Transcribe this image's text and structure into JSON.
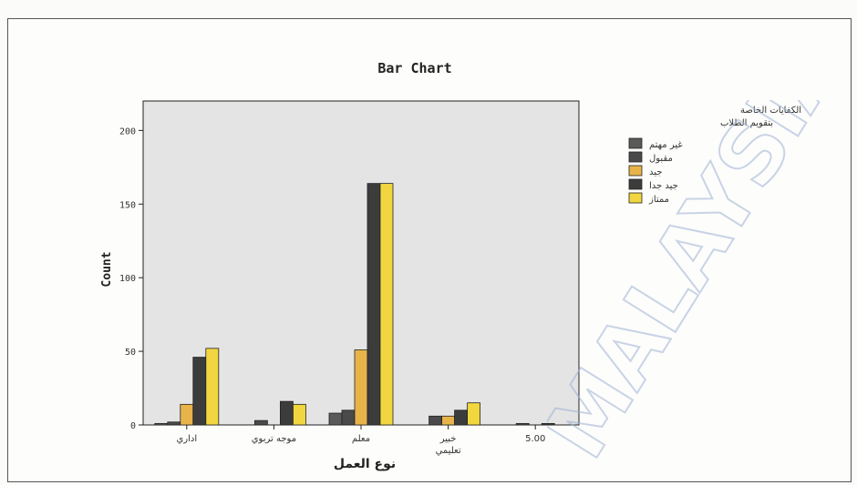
{
  "chart_data": {
    "type": "bar",
    "title": "Bar Chart",
    "ylabel": "Count",
    "xlabel": "نوع العمل",
    "ylim": [
      0,
      220
    ],
    "yticks": [
      0,
      50,
      100,
      150,
      200
    ],
    "categories": [
      "اداري",
      "موجه تربوي",
      "معلم",
      "خبير تعليمي",
      "5.00"
    ],
    "legend_title": [
      "الكفايات الخاصة",
      "بتقويم الطلاب"
    ],
    "legend_position": "right",
    "series": [
      {
        "name": "غير مهتم",
        "color": "#5a5a5a",
        "values": [
          1,
          0,
          8,
          0,
          0
        ]
      },
      {
        "name": "مقبول",
        "color": "#4a4a4a",
        "values": [
          2,
          3,
          10,
          6,
          1
        ]
      },
      {
        "name": "جيد",
        "color": "#e8b44a",
        "values": [
          14,
          0,
          51,
          6,
          0
        ]
      },
      {
        "name": "جيد جدا",
        "color": "#3c3c3c",
        "values": [
          46,
          16,
          164,
          10,
          1
        ]
      },
      {
        "name": "ممتاز",
        "color": "#f2d640",
        "values": [
          52,
          14,
          164,
          15,
          0
        ]
      }
    ]
  },
  "watermark": {
    "text": "MALAYSIA"
  }
}
